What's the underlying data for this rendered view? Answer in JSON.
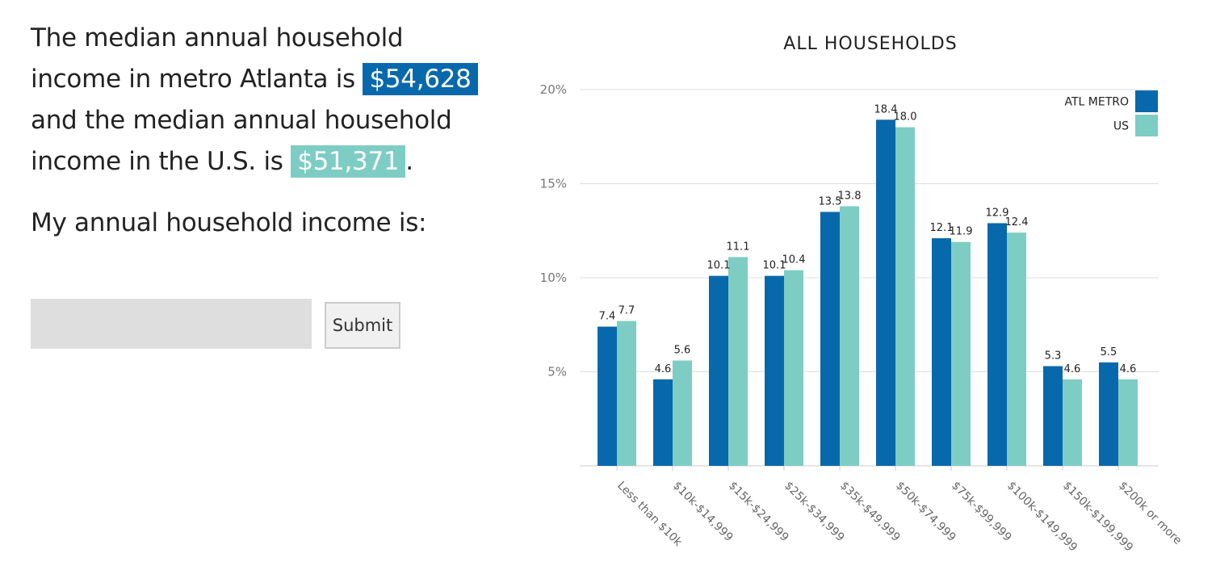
{
  "intro": {
    "part1": "The median annual household income in metro Atlanta is",
    "atl_median": "$54,628",
    "part2": "and the median annual household income in the U.S. is",
    "us_median": "$51,371",
    "part3": "."
  },
  "form": {
    "prompt": "My annual household income is:",
    "input_value": "",
    "input_placeholder": "",
    "submit_label": "Submit"
  },
  "colors": {
    "atl": "#0868ac",
    "us": "#7ecdc4"
  },
  "chart_data": {
    "type": "bar",
    "title": "ALL HOUSEHOLDS",
    "xlabel": "",
    "ylabel": "",
    "ylim": [
      0,
      20
    ],
    "yticks": [
      5,
      10,
      15,
      20
    ],
    "ytick_labels": [
      "5%",
      "10%",
      "15%",
      "20%"
    ],
    "grid": true,
    "legend_position": "top-right",
    "categories": [
      "Less than $10k",
      "$10k-$14,999",
      "$15k-$24,999",
      "$25k-$34,999",
      "$35k-$49,999",
      "$50k-$74,999",
      "$75k-$99,999",
      "$100k-$149,999",
      "$150k-$199,999",
      "$200k or more"
    ],
    "series": [
      {
        "name": "ATL METRO",
        "color": "#0868ac",
        "values": [
          7.4,
          4.6,
          10.1,
          10.1,
          13.5,
          18.4,
          12.1,
          12.9,
          5.3,
          5.5
        ],
        "labels": [
          "7.4",
          "4.6",
          "10.1",
          "10.1",
          "13.5",
          "18.4",
          "12.1",
          "12.9",
          "5.3",
          "5.5"
        ]
      },
      {
        "name": "US",
        "color": "#7ecdc4",
        "values": [
          7.7,
          5.6,
          11.1,
          10.4,
          13.8,
          18.0,
          11.9,
          12.4,
          4.6,
          4.6
        ],
        "labels": [
          "7.7",
          "5.6",
          "11.1",
          "10.4",
          "13.8",
          "18.0",
          "11.9",
          "12.4",
          "4.6",
          "4.6"
        ]
      }
    ]
  }
}
